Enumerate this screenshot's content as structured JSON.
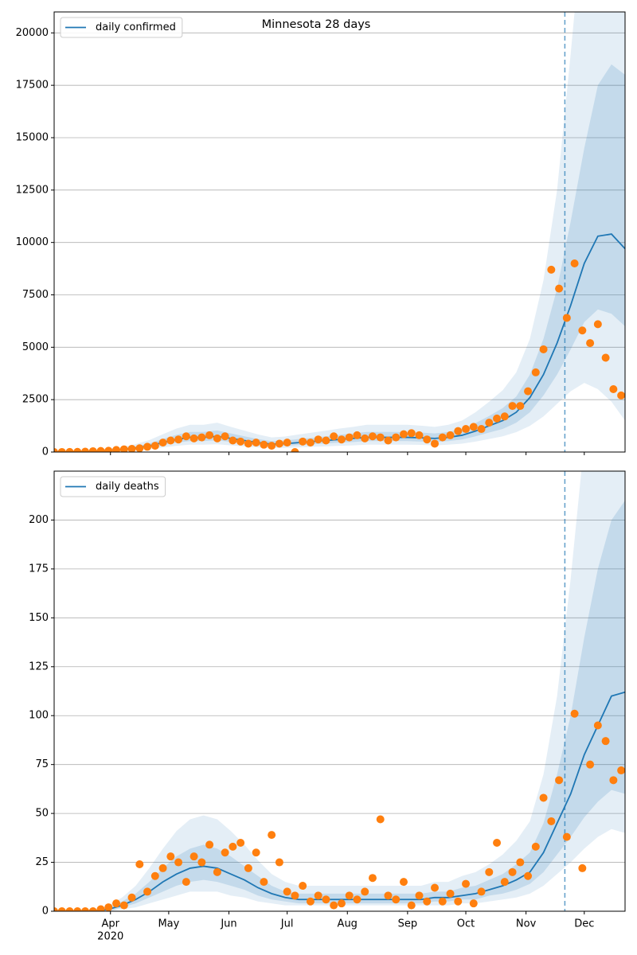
{
  "chart_data": [
    {
      "type": "line",
      "title": "Minnesota 28 days",
      "xlim": [
        0,
        294
      ],
      "xticks": [
        29,
        59,
        90,
        120,
        151,
        182,
        212,
        243,
        273
      ],
      "ylim": [
        0,
        21000
      ],
      "yticks": [
        0,
        2500,
        5000,
        7500,
        10000,
        12500,
        15000,
        17500,
        20000
      ],
      "grid": true,
      "legend": "upper left",
      "vline": {
        "x": 263,
        "color": "#1f77b4"
      },
      "x": [
        0,
        7,
        14,
        21,
        28,
        35,
        42,
        49,
        56,
        63,
        70,
        77,
        84,
        91,
        98,
        105,
        112,
        119,
        126,
        133,
        140,
        147,
        154,
        161,
        168,
        175,
        182,
        189,
        196,
        203,
        210,
        217,
        224,
        231,
        238,
        245,
        252,
        259,
        266,
        273,
        280,
        287,
        294
      ],
      "bands": [
        {
          "color": "#1f77b4",
          "opacity": 0.12,
          "lower": [
            0,
            2,
            10,
            25,
            40,
            60,
            100,
            150,
            220,
            300,
            350,
            350,
            370,
            320,
            270,
            220,
            190,
            200,
            220,
            250,
            270,
            300,
            320,
            350,
            350,
            350,
            350,
            340,
            320,
            350,
            400,
            500,
            620,
            750,
            950,
            1250,
            1700,
            2300,
            2900,
            3300,
            3000,
            2400,
            1500
          ],
          "upper": [
            0,
            12,
            40,
            100,
            160,
            230,
            380,
            570,
            850,
            1120,
            1300,
            1300,
            1400,
            1200,
            1020,
            840,
            700,
            740,
            840,
            930,
            1020,
            1120,
            1200,
            1300,
            1300,
            1300,
            1300,
            1260,
            1200,
            1300,
            1500,
            1900,
            2400,
            2950,
            3800,
            5400,
            8200,
            12500,
            19000,
            26000,
            30000,
            30000,
            30000
          ]
        },
        {
          "color": "#1f77b4",
          "opacity": 0.16,
          "lower": [
            0,
            3,
            15,
            35,
            60,
            90,
            150,
            220,
            330,
            450,
            520,
            520,
            560,
            480,
            400,
            330,
            280,
            300,
            330,
            370,
            410,
            450,
            480,
            520,
            520,
            520,
            520,
            500,
            480,
            520,
            600,
            750,
            930,
            1100,
            1400,
            1900,
            2700,
            3700,
            4900,
            6200,
            6800,
            6600,
            6000
          ],
          "upper": [
            0,
            8,
            28,
            70,
            110,
            160,
            270,
            410,
            620,
            820,
            960,
            960,
            1030,
            890,
            750,
            620,
            520,
            550,
            620,
            680,
            750,
            820,
            890,
            960,
            960,
            960,
            960,
            930,
            890,
            960,
            1100,
            1380,
            1720,
            2100,
            2650,
            3700,
            5400,
            7800,
            11000,
            14500,
            17500,
            18500,
            18000
          ]
        }
      ],
      "series": [
        {
          "name": "daily confirmed",
          "color": "#1f77b4",
          "values": [
            0,
            5,
            20,
            50,
            80,
            120,
            200,
            300,
            450,
            600,
            700,
            700,
            750,
            650,
            550,
            450,
            380,
            400,
            450,
            500,
            550,
            600,
            650,
            700,
            700,
            700,
            700,
            680,
            650,
            700,
            800,
            1000,
            1250,
            1500,
            1900,
            2600,
            3700,
            5200,
            7000,
            9000,
            10300,
            10400,
            9700
          ]
        }
      ],
      "points": {
        "color": "#ff7f0e",
        "x": [
          0,
          4,
          8,
          12,
          16,
          20,
          24,
          28,
          32,
          36,
          40,
          44,
          48,
          52,
          56,
          60,
          64,
          68,
          72,
          76,
          80,
          84,
          88,
          92,
          96,
          100,
          104,
          108,
          112,
          116,
          120,
          124,
          128,
          132,
          136,
          140,
          144,
          148,
          152,
          156,
          160,
          164,
          168,
          172,
          176,
          180,
          184,
          188,
          192,
          196,
          200,
          204,
          208,
          212,
          216,
          220,
          224,
          228,
          232,
          236,
          240,
          244,
          248,
          252,
          256,
          260,
          264,
          268,
          272,
          276,
          280,
          284,
          288,
          292
        ],
        "values": [
          0,
          2,
          5,
          10,
          20,
          40,
          50,
          60,
          100,
          130,
          150,
          180,
          250,
          300,
          450,
          550,
          600,
          750,
          650,
          700,
          800,
          650,
          750,
          550,
          500,
          400,
          450,
          350,
          300,
          400,
          450,
          0,
          500,
          450,
          600,
          550,
          750,
          600,
          700,
          800,
          650,
          750,
          700,
          550,
          700,
          850,
          900,
          800,
          600,
          400,
          700,
          800,
          1000,
          1100,
          1200,
          1100,
          1400,
          1600,
          1700,
          2200,
          2200,
          2900,
          3800,
          4900,
          8700,
          7800,
          6400,
          9000,
          5800,
          5200,
          6100,
          4500,
          3000,
          2700
        ]
      }
    },
    {
      "type": "line",
      "xlim": [
        0,
        294
      ],
      "xticks": [
        {
          "value": 29,
          "label": "Apr"
        },
        {
          "value": 59,
          "label": "May"
        },
        {
          "value": 90,
          "label": "Jun"
        },
        {
          "value": 120,
          "label": "Jul"
        },
        {
          "value": 151,
          "label": "Aug"
        },
        {
          "value": 182,
          "label": "Sep"
        },
        {
          "value": 212,
          "label": "Oct"
        },
        {
          "value": 243,
          "label": "Nov"
        },
        {
          "value": 273,
          "label": "Dec"
        }
      ],
      "year_label": "2020",
      "ylim": [
        0,
        225
      ],
      "yticks": [
        0,
        25,
        50,
        75,
        100,
        125,
        150,
        175,
        200
      ],
      "grid": true,
      "legend": "upper left",
      "vline": {
        "x": 263,
        "color": "#1f77b4"
      },
      "x": [
        0,
        7,
        14,
        21,
        28,
        35,
        42,
        49,
        56,
        63,
        70,
        77,
        84,
        91,
        98,
        105,
        112,
        119,
        126,
        133,
        140,
        147,
        154,
        161,
        168,
        175,
        182,
        189,
        196,
        203,
        210,
        217,
        224,
        231,
        238,
        245,
        252,
        259,
        266,
        273,
        280,
        287,
        294
      ],
      "bands": [
        {
          "color": "#1f77b4",
          "opacity": 0.12,
          "lower": [
            0,
            0,
            0,
            0,
            0,
            1,
            2,
            4,
            6,
            8,
            10,
            10,
            10,
            8,
            7,
            5,
            4,
            3,
            3,
            3,
            3,
            3,
            3,
            3,
            3,
            3,
            3,
            3,
            3,
            3,
            4,
            4,
            5,
            6,
            7,
            9,
            13,
            19,
            25,
            32,
            38,
            42,
            40
          ],
          "upper": [
            0,
            0,
            0,
            1,
            3,
            7,
            13,
            22,
            32,
            41,
            47,
            49,
            47,
            41,
            34,
            26,
            19,
            15,
            13,
            13,
            13,
            13,
            13,
            13,
            13,
            13,
            13,
            13,
            15,
            15,
            18,
            20,
            24,
            29,
            36,
            46,
            70,
            110,
            170,
            240,
            300,
            300,
            300
          ]
        },
        {
          "color": "#1f77b4",
          "opacity": 0.16,
          "lower": [
            0,
            0,
            0,
            0,
            0,
            2,
            4,
            7,
            10,
            13,
            15,
            16,
            15,
            13,
            11,
            8,
            6,
            5,
            4,
            4,
            4,
            4,
            4,
            4,
            4,
            4,
            4,
            4,
            5,
            5,
            6,
            6,
            8,
            9,
            11,
            14,
            20,
            29,
            38,
            48,
            56,
            62,
            60
          ],
          "upper": [
            0,
            0,
            0,
            0,
            2,
            5,
            9,
            15,
            22,
            28,
            32,
            34,
            32,
            28,
            23,
            18,
            13,
            10,
            9,
            9,
            9,
            9,
            9,
            9,
            9,
            9,
            9,
            9,
            10,
            10,
            12,
            13,
            16,
            19,
            24,
            30,
            45,
            70,
            100,
            140,
            175,
            200,
            210
          ]
        }
      ],
      "series": [
        {
          "name": "daily deaths",
          "color": "#1f77b4",
          "values": [
            0,
            0,
            0,
            0,
            1,
            3,
            6,
            10,
            15,
            19,
            22,
            23,
            22,
            19,
            16,
            12,
            9,
            7,
            6,
            6,
            6,
            6,
            6,
            6,
            6,
            6,
            6,
            6,
            7,
            7,
            8,
            9,
            11,
            13,
            16,
            20,
            30,
            45,
            60,
            80,
            95,
            110,
            112
          ]
        }
      ],
      "points": {
        "color": "#ff7f0e",
        "x": [
          0,
          4,
          8,
          12,
          16,
          20,
          24,
          28,
          32,
          36,
          40,
          44,
          48,
          52,
          56,
          60,
          64,
          68,
          72,
          76,
          80,
          84,
          88,
          92,
          96,
          100,
          104,
          108,
          112,
          116,
          120,
          124,
          128,
          132,
          136,
          140,
          144,
          148,
          152,
          156,
          160,
          164,
          168,
          172,
          176,
          180,
          184,
          188,
          192,
          196,
          200,
          204,
          208,
          212,
          216,
          220,
          224,
          228,
          232,
          236,
          240,
          244,
          248,
          252,
          256,
          260,
          264,
          268,
          272,
          276,
          280,
          284,
          288,
          292
        ],
        "values": [
          0,
          0,
          0,
          0,
          0,
          0,
          1,
          2,
          4,
          3,
          7,
          24,
          10,
          18,
          22,
          28,
          25,
          15,
          28,
          25,
          34,
          20,
          30,
          33,
          35,
          22,
          30,
          15,
          39,
          25,
          10,
          8,
          13,
          5,
          8,
          6,
          3,
          4,
          8,
          6,
          10,
          17,
          47,
          8,
          6,
          15,
          3,
          8,
          5,
          12,
          5,
          9,
          5,
          14,
          4,
          10,
          20,
          35,
          15,
          20,
          25,
          18,
          33,
          58,
          46,
          67,
          38,
          101,
          22,
          75,
          95,
          87,
          67,
          72
        ]
      }
    }
  ]
}
